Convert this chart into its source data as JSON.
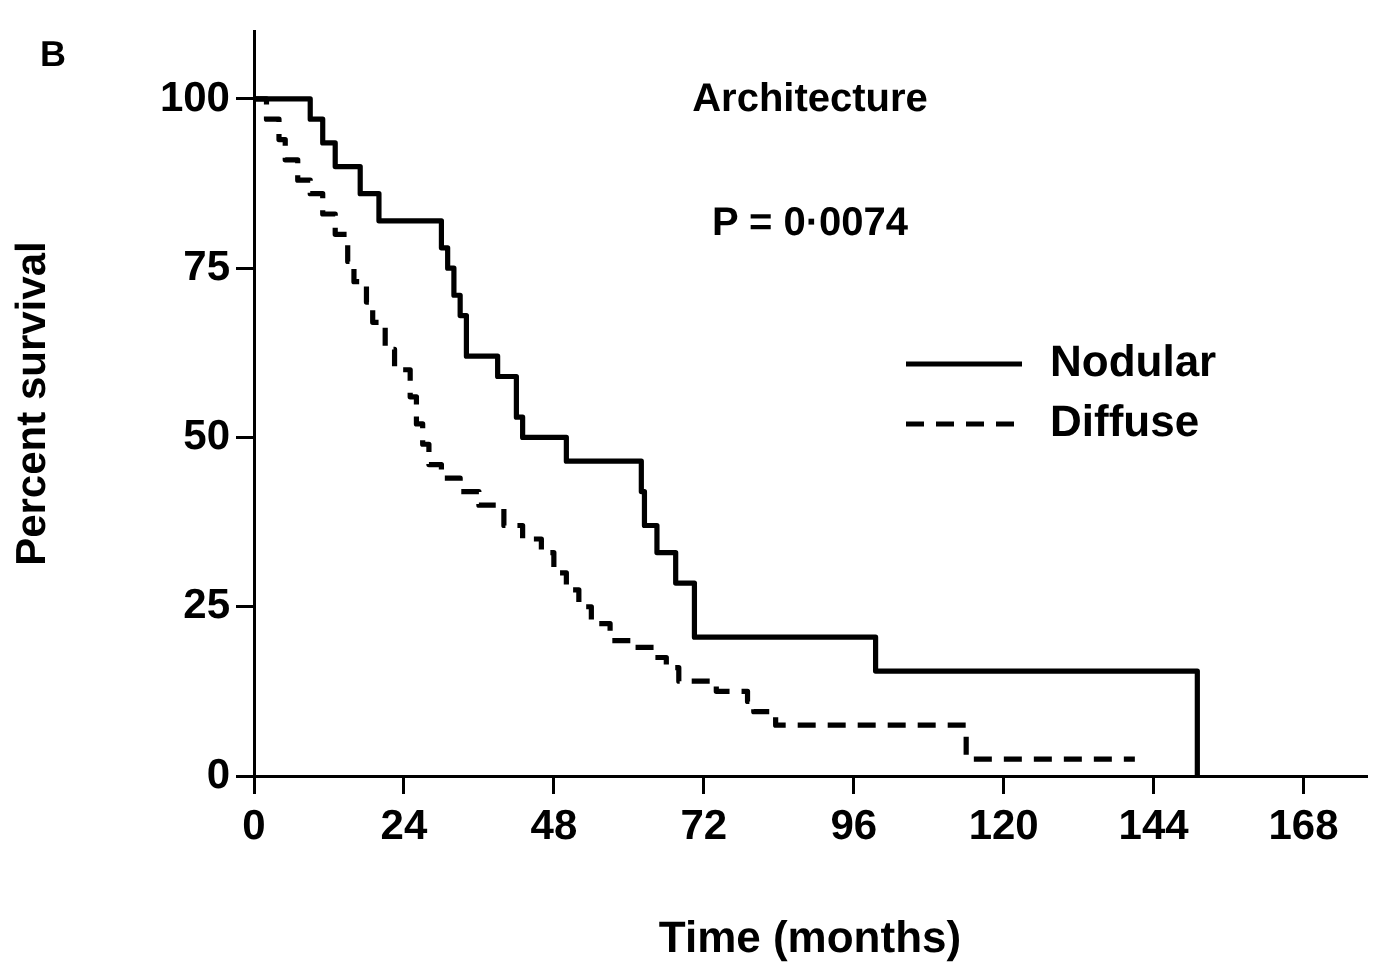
{
  "chart_data": {
    "type": "step",
    "xlabel": "Time (months)",
    "ylabel": "Percent survival",
    "annotations": [
      "B",
      "Architecture",
      "P = 0·0074"
    ],
    "xlim": [
      0,
      178
    ],
    "xticks": [
      0,
      24,
      48,
      72,
      96,
      120,
      144,
      168
    ],
    "ylim": [
      0,
      110
    ],
    "yticks": [
      0,
      25,
      50,
      75,
      100
    ],
    "grid": false,
    "legend": "right",
    "marker": "none",
    "series": [
      {
        "name": "Nodular",
        "color": "#000000",
        "line_style": "solid",
        "x": [
          0,
          9,
          11,
          13,
          17,
          20,
          30,
          31,
          32,
          33,
          34,
          39,
          42,
          43,
          50,
          62,
          62.5,
          64.5,
          67.5,
          70.5,
          99.5,
          151
        ],
        "values": [
          100,
          97,
          93.5,
          90,
          86,
          82,
          78,
          75,
          71,
          68,
          62,
          59,
          53,
          50,
          46.5,
          42,
          37,
          33,
          28.5,
          20.5,
          15.5,
          0
        ]
      },
      {
        "name": "Diffuse",
        "color": "#000000",
        "line_style": "dashed",
        "x": [
          0,
          2,
          4,
          5,
          7,
          9,
          11,
          13,
          15,
          16,
          18,
          19,
          21,
          22.5,
          25,
          26,
          27,
          28,
          30,
          33,
          36,
          40,
          43,
          46,
          48,
          50,
          52,
          54,
          57,
          61,
          64,
          66,
          68,
          74,
          79,
          80,
          83.5,
          114,
          141
        ],
        "values": [
          100,
          97,
          94,
          91,
          88,
          86,
          83,
          80,
          76,
          73,
          70,
          67,
          63,
          60,
          56,
          52,
          49,
          46,
          44,
          42,
          40,
          37,
          35,
          33,
          30,
          27.5,
          25,
          22.5,
          20,
          19,
          17.5,
          16,
          14,
          12.5,
          11,
          9.5,
          7.5,
          2.5,
          2.5
        ]
      }
    ]
  }
}
